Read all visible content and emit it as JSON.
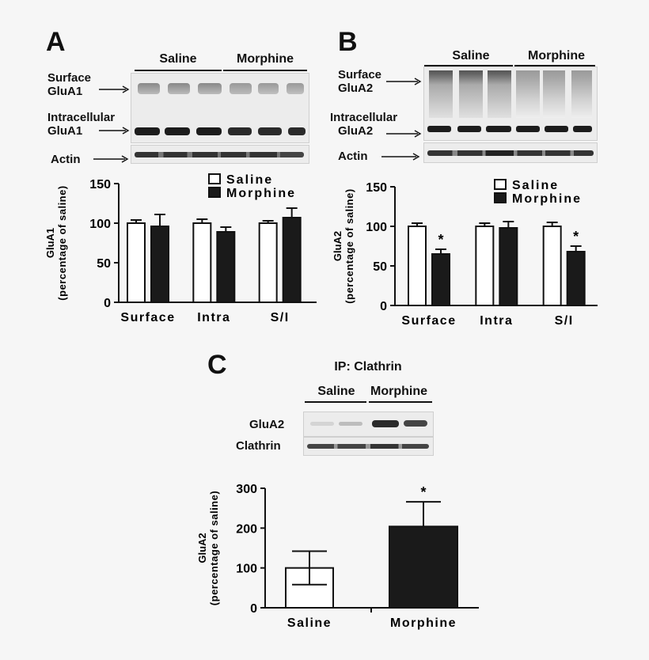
{
  "panelA": {
    "letter": "A",
    "groups": {
      "left": "Saline",
      "right": "Morphine"
    },
    "blot_labels": {
      "surface_line1": "Surface",
      "surface_line2": "GluA1",
      "intra_line1": "Intracellular",
      "intra_line2": "GluA1",
      "actin": "Actin"
    }
  },
  "panelB": {
    "letter": "B",
    "groups": {
      "left": "Saline",
      "right": "Morphine"
    },
    "blot_labels": {
      "surface_line1": "Surface",
      "surface_line2": "GluA2",
      "intra_line1": "Intracellular",
      "intra_line2": "GluA2",
      "actin": "Actin"
    }
  },
  "panelC": {
    "letter": "C",
    "ip_label": "IP: Clathrin",
    "groups": {
      "left": "Saline",
      "right": "Morphine"
    },
    "blot_labels": {
      "glua2": "GluA2",
      "clathrin": "Clathrin"
    }
  },
  "colors": {
    "saline": "#ffffff",
    "morphine": "#1a1a1a",
    "axis": "#111111"
  },
  "chart_data": [
    {
      "type": "bar",
      "categories": [
        "Surface",
        "Intra",
        "S/I"
      ],
      "series": [
        {
          "name": "Saline",
          "values": [
            100,
            100,
            100
          ],
          "errors": [
            4,
            5,
            3
          ]
        },
        {
          "name": "Morphine",
          "values": [
            96,
            89,
            107
          ],
          "errors": [
            15,
            6,
            12
          ]
        }
      ],
      "significance": [
        [
          false,
          false
        ],
        [
          false,
          false
        ],
        [
          false,
          false
        ]
      ],
      "ylabel_line1": "GluA1",
      "ylabel_line2": "(percentage of saline)",
      "yticks": [
        0,
        50,
        100,
        150
      ],
      "ylim": [
        0,
        150
      ],
      "legend_position": "top-right"
    },
    {
      "type": "bar",
      "categories": [
        "Surface",
        "Intra",
        "S/I"
      ],
      "series": [
        {
          "name": "Saline",
          "values": [
            100,
            100,
            100
          ],
          "errors": [
            4,
            4,
            5
          ]
        },
        {
          "name": "Morphine",
          "values": [
            65,
            98,
            68
          ],
          "errors": [
            6,
            8,
            7
          ]
        }
      ],
      "significance": [
        [
          false,
          true
        ],
        [
          false,
          false
        ],
        [
          false,
          true
        ]
      ],
      "significance_marker": "*",
      "ylabel_line1": "GluA2",
      "ylabel_line2": "(percentage of saline)",
      "yticks": [
        0,
        50,
        100,
        150
      ],
      "ylim": [
        0,
        150
      ],
      "legend_position": "top-right"
    },
    {
      "type": "bar",
      "categories": [
        "Saline",
        "Morphine"
      ],
      "values": [
        100,
        204
      ],
      "errors": [
        42,
        62
      ],
      "significance": [
        false,
        true
      ],
      "significance_marker": "*",
      "ylabel_line1": "GluA2",
      "ylabel_line2": "(percentage of saline)",
      "yticks": [
        0,
        100,
        200,
        300
      ],
      "ylim": [
        0,
        300
      ]
    }
  ]
}
